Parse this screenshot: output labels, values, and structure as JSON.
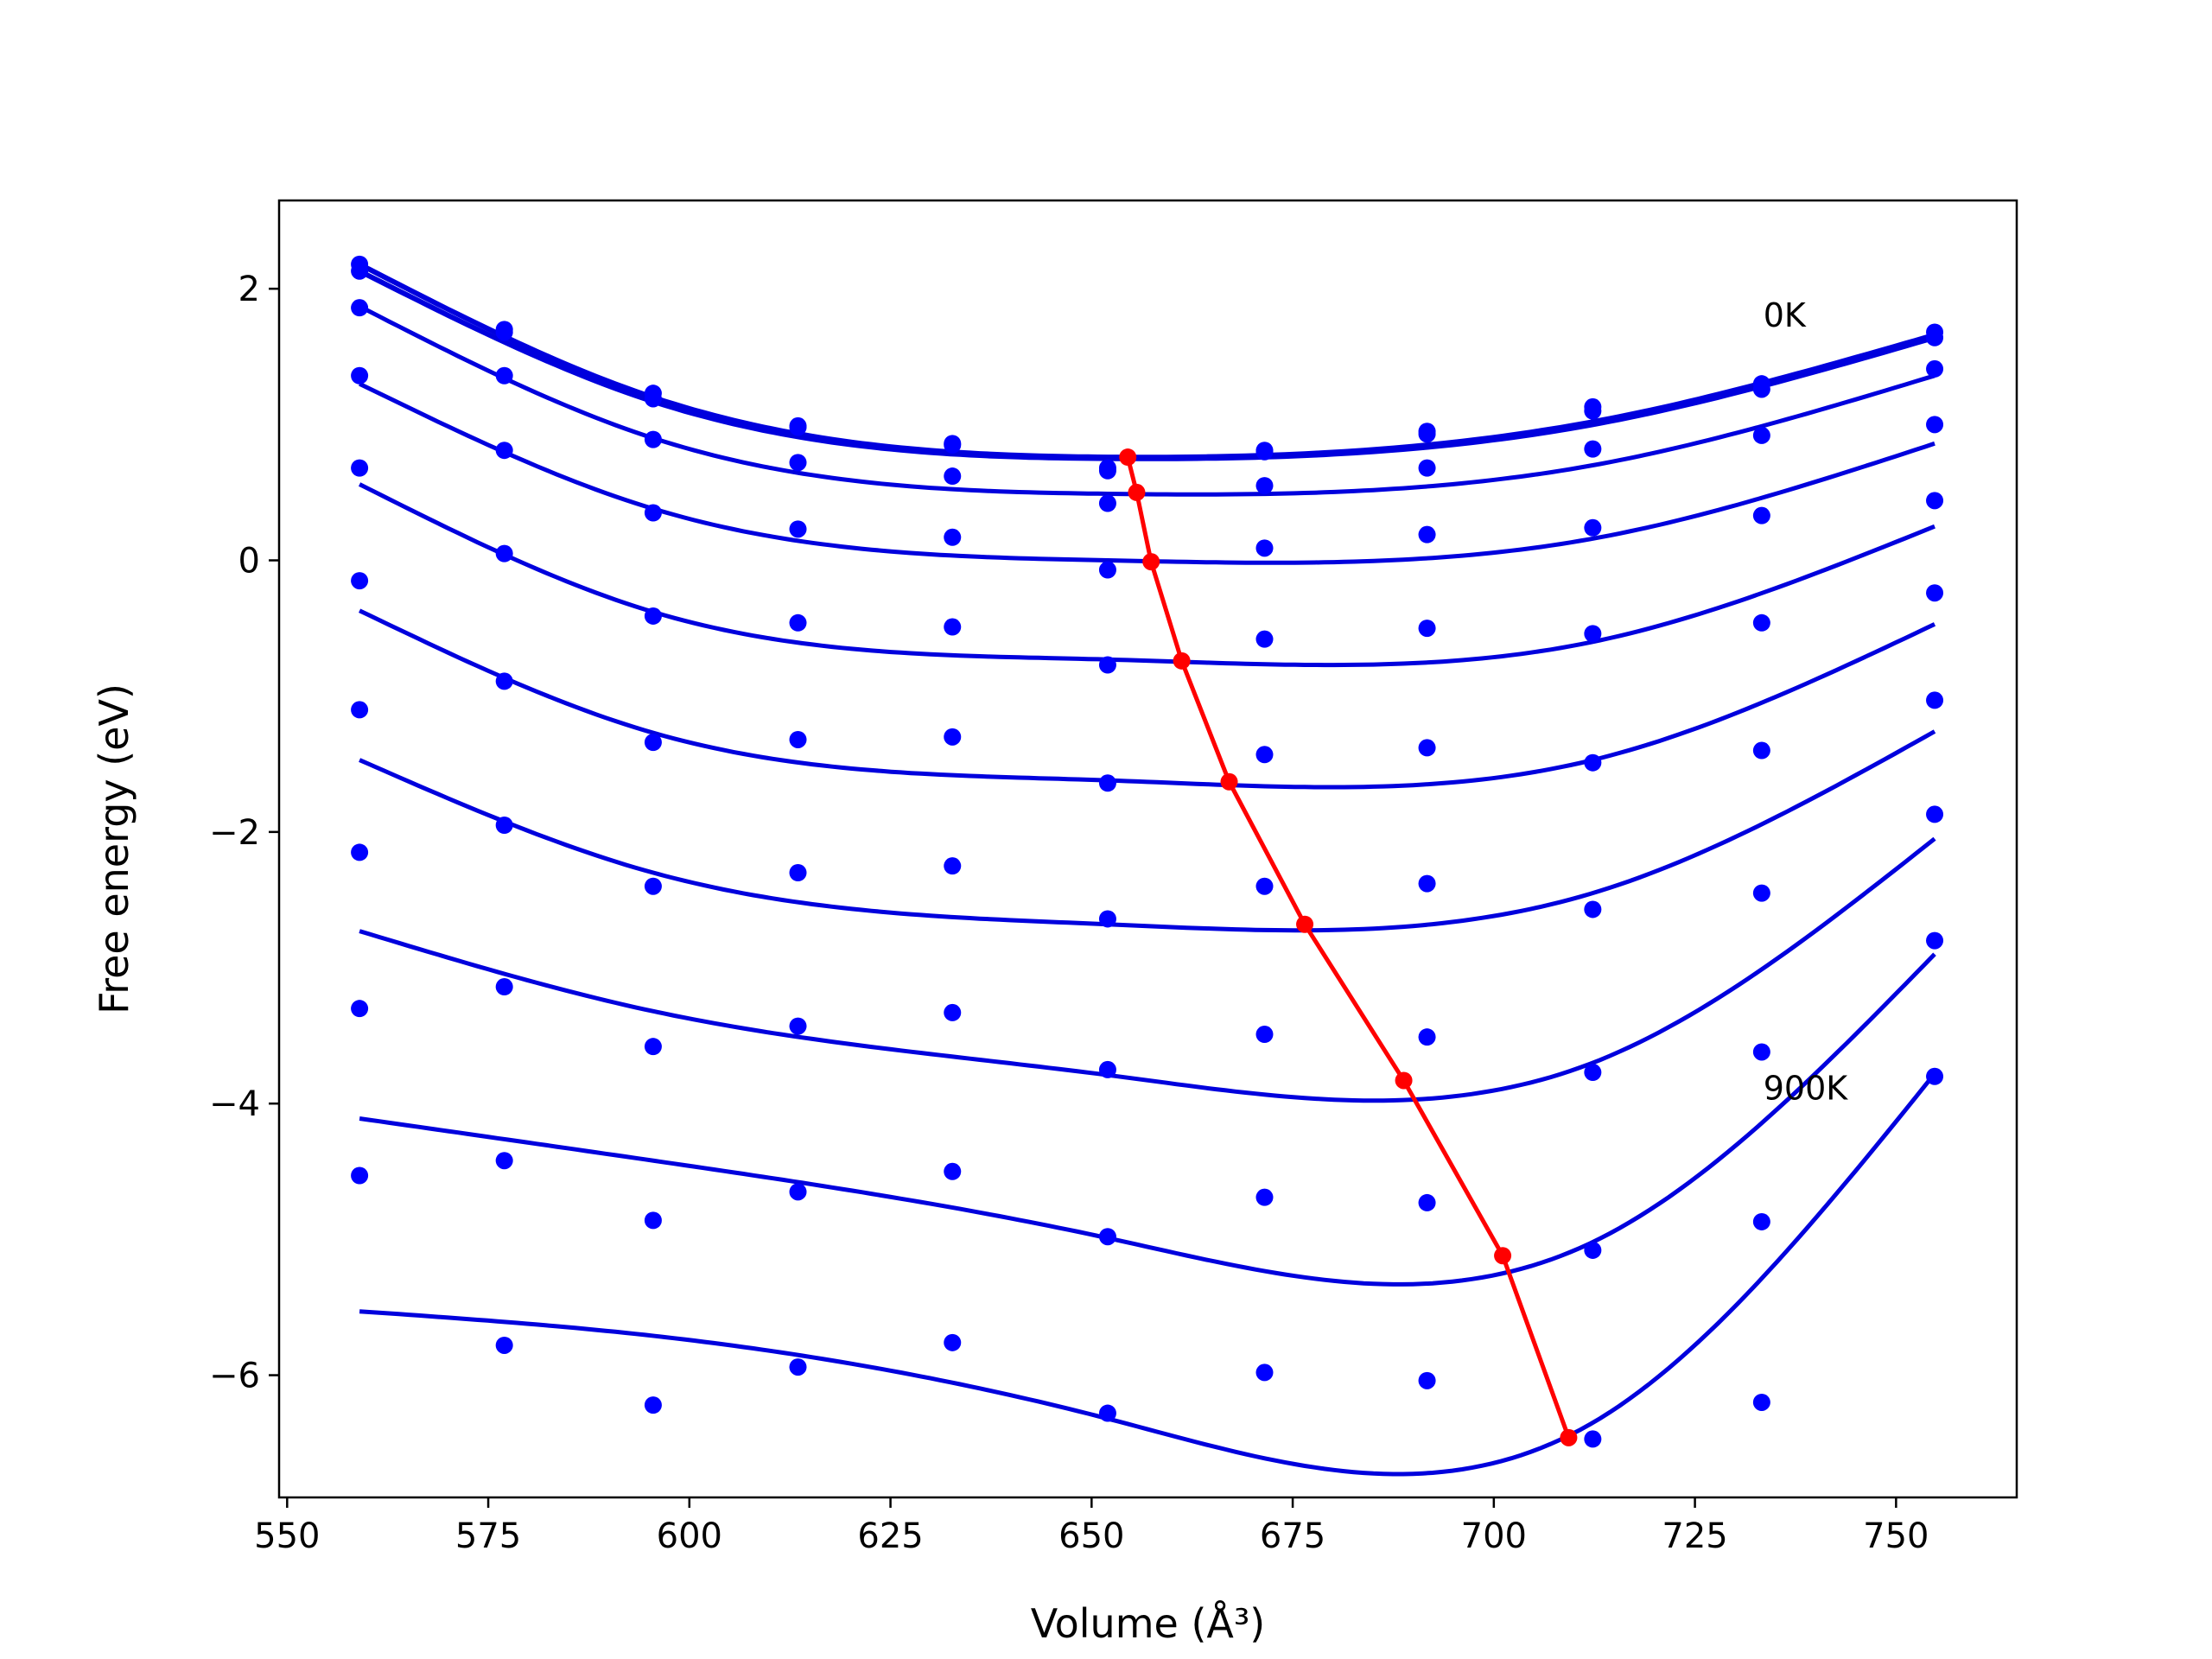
{
  "chart_data": {
    "type": "line",
    "xlabel": "Volume (Å³)",
    "ylabel": "Free energy (eV)",
    "xlim": [
      549,
      765
    ],
    "ylim": [
      -6.9,
      2.65
    ],
    "x_ticks": [
      550,
      575,
      600,
      625,
      650,
      675,
      700,
      725,
      750
    ],
    "y_ticks": [
      -6,
      -4,
      -2,
      0,
      2
    ],
    "x_tick_labels": [
      "550",
      "575",
      "600",
      "625",
      "650",
      "675",
      "700",
      "725",
      "750"
    ],
    "y_tick_labels": [
      "−6",
      "−4",
      "−2",
      "0",
      "2"
    ],
    "grid": false,
    "legend": "none",
    "colors": {
      "fit": "#0000dd",
      "points": "#0000ff",
      "minima": "#ff0000"
    },
    "x": [
      559,
      577,
      595.5,
      613.5,
      632.7,
      652,
      671.5,
      691.7,
      712.3,
      733.3,
      754.8
    ],
    "series": [
      {
        "values": [
          2.18,
          1.7,
          1.23,
          0.99,
          0.86,
          0.68,
          0.81,
          0.95,
          1.13,
          1.3,
          1.68
        ],
        "fit": [
          2.18,
          1.2,
          0.76,
          1.02,
          1.66
        ]
      },
      {
        "values": [
          2.13,
          1.68,
          1.19,
          0.98,
          0.85,
          0.66,
          0.8,
          0.93,
          1.1,
          1.26,
          1.64
        ],
        "fit": [
          2.13,
          1.17,
          0.75,
          1.0,
          1.64
        ]
      },
      {
        "values": [
          1.86,
          1.36,
          0.89,
          0.72,
          0.62,
          0.42,
          0.55,
          0.68,
          0.82,
          0.92,
          1.41
        ],
        "fit": [
          1.87,
          0.9,
          0.49,
          0.7,
          1.36
        ]
      },
      {
        "values": [
          1.36,
          0.81,
          0.35,
          0.23,
          0.17,
          -0.07,
          0.09,
          0.19,
          0.24,
          0.33,
          1.0
        ],
        "fit": [
          1.3,
          0.38,
          0.0,
          0.16,
          0.86
        ]
      },
      {
        "values": [
          0.68,
          0.05,
          -0.41,
          -0.46,
          -0.49,
          -0.77,
          -0.58,
          -0.5,
          -0.54,
          -0.46,
          0.44
        ],
        "fit": [
          0.56,
          -0.38,
          -0.73,
          -0.6,
          0.25
        ]
      },
      {
        "values": [
          -0.15,
          -0.89,
          -1.34,
          -1.32,
          -1.3,
          -1.64,
          -1.43,
          -1.38,
          -1.49,
          -1.4,
          -0.24
        ],
        "fit": [
          -0.37,
          -1.27,
          -1.62,
          -1.47,
          -0.47
        ]
      },
      {
        "values": [
          -1.1,
          -1.95,
          -2.4,
          -2.3,
          -2.25,
          -2.64,
          -2.4,
          -2.38,
          -2.57,
          -2.45,
          -1.03
        ],
        "fit": [
          -1.47,
          -2.3,
          -2.68,
          -2.45,
          -1.26
        ]
      },
      {
        "values": [
          -2.15,
          -3.14,
          -3.58,
          -3.43,
          -3.33,
          -3.75,
          -3.49,
          -3.51,
          -3.77,
          -3.62,
          -1.87
        ],
        "fit": [
          -2.73,
          -3.32,
          -3.79,
          -3.7,
          -2.05
        ]
      },
      {
        "values": [
          -3.3,
          -4.42,
          -4.86,
          -4.65,
          -4.5,
          -4.98,
          -4.69,
          -4.73,
          -5.08,
          -4.87,
          -2.8
        ],
        "fit": [
          -4.11,
          -4.42,
          -4.99,
          -5.02,
          -2.9
        ]
      },
      {
        "values": [
          -4.53,
          -5.78,
          -6.22,
          -5.94,
          -5.76,
          -6.28,
          -5.98,
          -6.04,
          -6.47,
          -6.2,
          -3.8
        ],
        "fit": [
          -5.53,
          -5.71,
          -6.32,
          -6.35,
          -3.78
        ]
      }
    ],
    "minima": {
      "x": [
        654.5,
        655.6,
        657.4,
        661.2,
        667.1,
        676.5,
        688.8,
        701.1,
        709.3
      ],
      "y": [
        0.76,
        0.5,
        -0.01,
        -0.74,
        -1.63,
        -2.68,
        -3.83,
        -5.12,
        -6.46
      ]
    },
    "annotations": [
      {
        "text": "0K",
        "x": 733.5,
        "y": 1.72
      },
      {
        "text": "900K",
        "x": 733.5,
        "y": -3.97
      }
    ]
  }
}
